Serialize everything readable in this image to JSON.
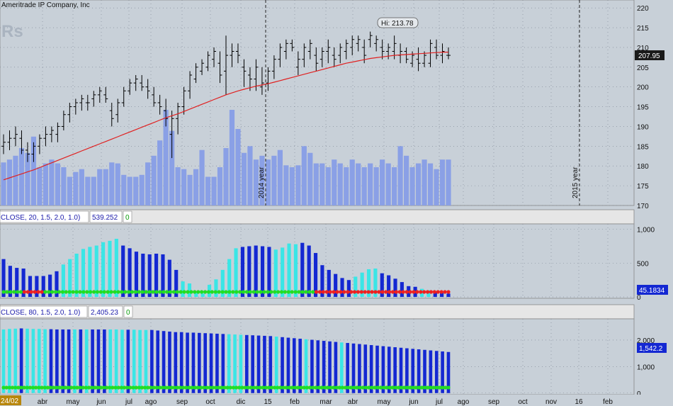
{
  "header": {
    "copyright": "Ameritrade IP Company, Inc",
    "watermark": "Rs"
  },
  "colors": {
    "pane_bg": "#c8d0d8",
    "bar_ohlc": "#000000",
    "ma_line": "#e02020",
    "volume": "#8aa0e6",
    "dark_bar": "#1428d2",
    "light_bar": "#3ae6e6",
    "dot_green": "#22dd22",
    "dot_red": "#ee2020",
    "price_tag": "#1a1a1a",
    "value_tag": "#1428d2"
  },
  "chart_data": [
    {
      "type": "ohlc",
      "pane": "price",
      "y_ticks": [
        "220",
        "215",
        "210",
        "205",
        "200",
        "195",
        "190",
        "185",
        "180",
        "175",
        "170"
      ],
      "ylim": [
        170,
        222
      ],
      "hi_label": "Hi: 213.78",
      "last_price": "207.95",
      "period_labels": [
        "2014 year",
        "2015 year"
      ],
      "ohlc": [
        [
          185,
          188,
          183,
          186
        ],
        [
          186,
          189,
          184,
          187
        ],
        [
          187,
          190,
          185,
          188
        ],
        [
          187,
          189,
          183,
          184
        ],
        [
          184,
          186,
          181,
          183
        ],
        [
          183,
          186,
          181,
          185
        ],
        [
          185,
          188,
          183,
          187
        ],
        [
          187,
          190,
          185,
          188
        ],
        [
          188,
          190,
          186,
          189
        ],
        [
          188,
          191,
          186,
          190
        ],
        [
          190,
          194,
          189,
          193
        ],
        [
          193,
          196,
          191,
          195
        ],
        [
          195,
          197,
          193,
          196
        ],
        [
          196,
          198,
          194,
          197
        ],
        [
          196,
          198,
          194,
          196
        ],
        [
          197,
          199,
          195,
          198
        ],
        [
          198,
          200,
          196,
          199
        ],
        [
          198,
          200,
          196,
          197
        ],
        [
          194,
          196,
          190,
          192
        ],
        [
          193,
          197,
          191,
          196
        ],
        [
          196,
          200,
          195,
          199
        ],
        [
          199,
          202,
          198,
          201
        ],
        [
          201,
          203,
          199,
          202
        ],
        [
          201,
          203,
          199,
          200
        ],
        [
          200,
          202,
          197,
          199
        ],
        [
          198,
          200,
          195,
          196
        ],
        [
          196,
          198,
          193,
          195
        ],
        [
          194,
          197,
          190,
          192
        ],
        [
          188,
          194,
          182,
          192
        ],
        [
          192,
          196,
          188,
          195
        ],
        [
          195,
          200,
          193,
          199
        ],
        [
          199,
          204,
          197,
          203
        ],
        [
          202,
          206,
          201,
          205
        ],
        [
          204,
          207,
          203,
          206
        ],
        [
          205,
          209,
          204,
          208
        ],
        [
          207,
          210,
          205,
          209
        ],
        [
          206,
          209,
          201,
          203
        ],
        [
          204,
          213,
          198,
          208
        ],
        [
          208,
          211,
          205,
          209
        ],
        [
          209,
          211,
          206,
          208
        ],
        [
          205,
          207,
          200,
          204
        ],
        [
          203,
          205,
          199,
          202
        ],
        [
          202,
          207,
          199,
          205
        ],
        [
          200,
          205,
          198,
          201
        ],
        [
          201,
          205,
          199,
          204
        ],
        [
          204,
          208,
          202,
          207
        ],
        [
          207,
          211,
          205,
          210
        ],
        [
          209,
          212,
          207,
          211
        ],
        [
          211,
          212,
          209,
          210
        ],
        [
          205,
          209,
          203,
          207
        ],
        [
          207,
          211,
          205,
          210
        ],
        [
          209,
          212,
          207,
          211
        ],
        [
          208,
          210,
          204,
          206
        ],
        [
          207,
          210,
          205,
          209
        ],
        [
          209,
          212,
          206,
          210
        ],
        [
          208,
          210,
          205,
          207
        ],
        [
          208,
          211,
          206,
          210
        ],
        [
          209,
          212,
          207,
          211
        ],
        [
          210,
          213,
          208,
          212
        ],
        [
          211,
          213,
          209,
          212
        ],
        [
          210,
          212,
          206,
          208
        ],
        [
          212,
          214,
          210,
          213
        ],
        [
          211,
          213,
          209,
          212
        ],
        [
          210,
          212,
          207,
          209
        ],
        [
          209,
          211,
          207,
          210
        ],
        [
          209,
          213,
          207,
          211
        ],
        [
          208,
          211,
          206,
          209
        ],
        [
          209,
          210,
          206,
          207
        ],
        [
          206,
          209,
          205,
          208
        ],
        [
          207,
          210,
          204,
          206
        ],
        [
          206,
          209,
          205,
          208
        ],
        [
          206,
          212,
          205,
          211
        ],
        [
          210,
          212,
          207,
          208
        ],
        [
          208,
          211,
          206,
          209
        ],
        [
          208,
          210,
          207,
          208
        ]
      ],
      "ma": [
        176.5,
        177.0,
        177.5,
        178.0,
        178.5,
        179.0,
        179.6,
        180.2,
        180.8,
        181.4,
        182.0,
        182.6,
        183.2,
        183.8,
        184.4,
        185.0,
        185.6,
        186.2,
        186.8,
        187.4,
        188.0,
        188.6,
        189.2,
        189.8,
        190.4,
        191.0,
        191.6,
        192.2,
        192.7,
        193.2,
        193.8,
        194.4,
        195.0,
        195.6,
        196.2,
        196.8,
        197.4,
        198.0,
        198.5,
        199.0,
        199.4,
        199.8,
        200.2,
        200.5,
        200.8,
        201.2,
        201.6,
        202.0,
        202.4,
        202.8,
        203.2,
        203.6,
        204.0,
        204.4,
        204.8,
        205.2,
        205.6,
        206.0,
        206.3,
        206.6,
        206.9,
        207.2,
        207.4,
        207.6,
        207.8,
        208.0,
        208.1,
        208.2,
        208.3,
        208.4,
        208.5,
        208.6,
        208.7,
        208.8,
        208.8
      ],
      "volume": [
        45,
        48,
        52,
        60,
        55,
        72,
        40,
        44,
        48,
        44,
        40,
        30,
        35,
        38,
        30,
        30,
        38,
        38,
        45,
        44,
        32,
        30,
        30,
        32,
        45,
        52,
        68,
        100,
        78,
        40,
        38,
        32,
        38,
        58,
        30,
        30,
        40,
        60,
        100,
        80,
        55,
        62,
        48,
        52,
        48,
        52,
        58,
        42,
        40,
        42,
        62,
        55,
        44,
        44,
        40,
        48,
        44,
        40,
        48,
        44,
        40,
        44,
        40,
        48,
        44,
        40,
        62,
        52,
        40,
        44,
        48,
        44,
        38,
        48,
        48
      ]
    },
    {
      "type": "histogram",
      "pane": "indicator_1",
      "header": "CLOSE, 20, 1.5, 2.0, 1.0)",
      "header_value": "539.252",
      "flag": "0",
      "y_ticks": [
        "1,000",
        "500",
        "0"
      ],
      "ylim": [
        -20,
        1080
      ],
      "last_value": "45.1834",
      "values": [
        560,
        460,
        430,
        420,
        310,
        310,
        310,
        330,
        380,
        480,
        560,
        640,
        710,
        740,
        760,
        810,
        830,
        860,
        760,
        720,
        670,
        640,
        630,
        640,
        630,
        550,
        400,
        230,
        200,
        80,
        50,
        180,
        260,
        400,
        560,
        720,
        740,
        750,
        760,
        750,
        740,
        700,
        730,
        790,
        780,
        800,
        760,
        650,
        470,
        400,
        340,
        280,
        250,
        300,
        360,
        410,
        420,
        350,
        320,
        270,
        220,
        160,
        150,
        120,
        100,
        80,
        60,
        50
      ],
      "colors": [
        "d",
        "d",
        "d",
        "d",
        "d",
        "d",
        "d",
        "d",
        "d",
        "l",
        "l",
        "l",
        "l",
        "l",
        "l",
        "l",
        "l",
        "l",
        "d",
        "d",
        "d",
        "d",
        "d",
        "d",
        "d",
        "d",
        "d",
        "l",
        "l",
        "l",
        "l",
        "l",
        "l",
        "l",
        "l",
        "l",
        "d",
        "d",
        "d",
        "d",
        "d",
        "l",
        "l",
        "l",
        "l",
        "d",
        "d",
        "d",
        "d",
        "d",
        "d",
        "d",
        "d",
        "l",
        "l",
        "l",
        "l",
        "d",
        "d",
        "d",
        "d",
        "d",
        "d",
        "l",
        "l",
        "d",
        "d",
        "d"
      ],
      "dots": [
        "g",
        "g",
        "g",
        "g",
        "g",
        "g",
        "r",
        "r",
        "r",
        "r",
        "r",
        "r",
        "g",
        "g",
        "g",
        "g",
        "g",
        "g",
        "g",
        "g",
        "g",
        "g",
        "g",
        "g",
        "g",
        "g",
        "g",
        "g",
        "g",
        "g",
        "g",
        "g",
        "g",
        "g",
        "g",
        "g",
        "g",
        "g",
        "g",
        "g",
        "g",
        "g",
        "g",
        "g",
        "g",
        "g",
        "g",
        "g",
        "g",
        "g",
        "g",
        "g",
        "g",
        "g",
        "g",
        "g",
        "g",
        "g",
        "g",
        "g",
        "g",
        "g",
        "g",
        "g",
        "g",
        "g",
        "g",
        "g",
        "g",
        "g",
        "g",
        "g",
        "g",
        "g",
        "g",
        "g",
        "g",
        "g",
        "g",
        "g",
        "g",
        "g",
        "g",
        "g",
        "g",
        "g",
        "g",
        "g",
        "g",
        "g",
        "r",
        "r",
        "r",
        "r",
        "r",
        "r",
        "r",
        "r",
        "r",
        "r",
        "r",
        "r",
        "r",
        "r",
        "r",
        "r",
        "r",
        "r",
        "r",
        "r",
        "r",
        "r",
        "r",
        "r",
        "r",
        "r",
        "r",
        "r",
        "r",
        "r",
        "r",
        "r",
        "r",
        "r",
        "r",
        "r",
        "r",
        "r",
        "r"
      ]
    },
    {
      "type": "histogram",
      "pane": "indicator_2",
      "header": "CLOSE, 80, 1.5, 2.0, 1.0)",
      "header_value": "2,405.23",
      "flag": "0",
      "y_ticks": [
        "2,000",
        "1,000",
        "0"
      ],
      "ylim": [
        -60,
        2800
      ],
      "last_value": "1,542.2",
      "values": [
        2400,
        2420,
        2430,
        2440,
        2430,
        2420,
        2420,
        2410,
        2410,
        2400,
        2400,
        2400,
        2400,
        2400,
        2400,
        2400,
        2400,
        2400,
        2400,
        2400,
        2390,
        2390,
        2390,
        2380,
        2380,
        2380,
        2360,
        2340,
        2320,
        2300,
        2300,
        2280,
        2280,
        2270,
        2260,
        2250,
        2240,
        2230,
        2220,
        2210,
        2200,
        2190,
        2180,
        2170,
        2160,
        2150,
        2130,
        2110,
        2090,
        2070,
        2050,
        2030,
        2010,
        1990,
        1970,
        1950,
        1930,
        1910,
        1890,
        1870,
        1850,
        1830,
        1810,
        1790,
        1770,
        1750,
        1730,
        1710,
        1690,
        1670,
        1650,
        1630,
        1610,
        1590,
        1570,
        1550
      ],
      "colors": [
        "l",
        "l",
        "l",
        "d",
        "l",
        "l",
        "l",
        "l",
        "d",
        "d",
        "d",
        "d",
        "l",
        "d",
        "l",
        "d",
        "d",
        "d",
        "l",
        "l",
        "l",
        "d",
        "l",
        "l",
        "l",
        "d",
        "d",
        "d",
        "d",
        "d",
        "d",
        "d",
        "d",
        "d",
        "d",
        "d",
        "d",
        "d",
        "l",
        "l",
        "l",
        "d",
        "d",
        "d",
        "d",
        "d",
        "l",
        "d",
        "d",
        "d",
        "d",
        "l",
        "d",
        "d",
        "d",
        "d",
        "d",
        "l",
        "d",
        "d",
        "d",
        "d",
        "d",
        "d",
        "d",
        "d",
        "d",
        "d",
        "d",
        "d",
        "d",
        "d",
        "d",
        "d",
        "d",
        "d"
      ]
    }
  ],
  "time_axis": {
    "left_badge": "24/02",
    "labels": [
      "abr",
      "may",
      "jun",
      "jul",
      "ago",
      "sep",
      "oct",
      "dic",
      "15",
      "feb",
      "mar",
      "abr",
      "may",
      "jun",
      "jul",
      "ago",
      "sep",
      "oct",
      "nov",
      "16",
      "feb"
    ]
  }
}
